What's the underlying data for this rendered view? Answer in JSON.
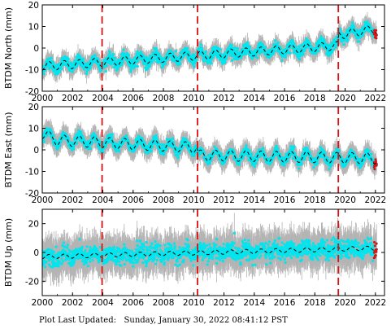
{
  "footer": {
    "label": "Plot Last Updated:",
    "value": "Sunday, January 30, 2022 08:41:12 PST"
  },
  "colors": {
    "error_bars": "#b4b4b4",
    "data": "#00e5ee",
    "recent": "#e01010",
    "model": "#000000",
    "events": "#e01010"
  },
  "chart_data": [
    {
      "type": "scatter",
      "ylabel": "BTDM North (mm)",
      "xlim": [
        2000,
        2022.6
      ],
      "ylim": [
        -20,
        20
      ],
      "xticks": [
        "2000",
        "2002",
        "2004",
        "2006",
        "2008",
        "2010",
        "2012",
        "2014",
        "2016",
        "2018",
        "2020",
        "2022"
      ],
      "yticks": [
        -20,
        -10,
        0,
        10,
        20
      ],
      "event_lines": [
        2003.95,
        2010.25,
        2019.55
      ],
      "trend": [
        {
          "x": 2000.0,
          "y": -8.5
        },
        {
          "x": 2019.5,
          "y": 1.0
        },
        {
          "x": 2019.6,
          "y": 6.0
        },
        {
          "x": 2022.1,
          "y": 9.0
        }
      ],
      "seasonal_amplitude": 2.0,
      "scatter_spread": 2.5,
      "error_bar": 4.0
    },
    {
      "type": "scatter",
      "ylabel": "BTDM East (mm)",
      "xlim": [
        2000,
        2022.6
      ],
      "ylim": [
        -20,
        20
      ],
      "xticks": [
        "2000",
        "2002",
        "2004",
        "2006",
        "2008",
        "2010",
        "2012",
        "2014",
        "2016",
        "2018",
        "2020",
        "2022"
      ],
      "yticks": [
        -20,
        -10,
        0,
        10,
        20
      ],
      "event_lines": [
        2003.95,
        2010.25,
        2019.55
      ],
      "trend": [
        {
          "x": 2000.0,
          "y": 7.5
        },
        {
          "x": 2001.0,
          "y": 4.5
        },
        {
          "x": 2010.2,
          "y": 1.0
        },
        {
          "x": 2010.3,
          "y": -2.5
        },
        {
          "x": 2022.1,
          "y": -4.0
        }
      ],
      "seasonal_amplitude": 2.5,
      "scatter_spread": 2.0,
      "error_bar": 4.5
    },
    {
      "type": "scatter",
      "ylabel": "BTDM Up (mm)",
      "xlim": [
        2000,
        2022.6
      ],
      "ylim": [
        -30,
        30
      ],
      "xticks": [
        "2000",
        "2002",
        "2004",
        "2006",
        "2008",
        "2010",
        "2012",
        "2014",
        "2016",
        "2018",
        "2020",
        "2022"
      ],
      "yticks": [
        -20,
        0,
        20
      ],
      "event_lines": [
        2003.95,
        2010.25,
        2019.55
      ],
      "trend": [
        {
          "x": 2000.0,
          "y": -3.0
        },
        {
          "x": 2022.1,
          "y": 3.0
        }
      ],
      "seasonal_amplitude": 1.5,
      "scatter_spread": 6.0,
      "error_bar": 12.0
    }
  ]
}
